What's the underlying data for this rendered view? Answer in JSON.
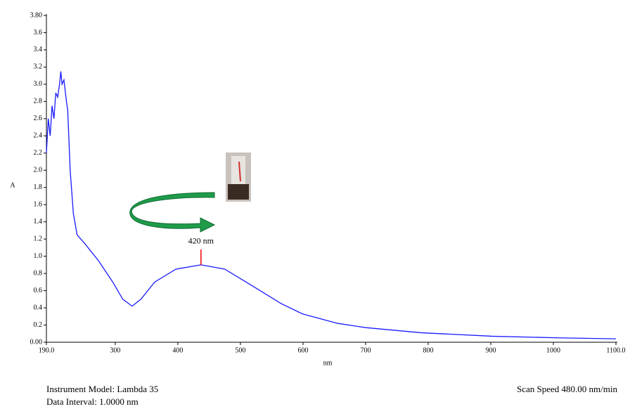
{
  "chart_data": {
    "type": "line",
    "xlabel": "nm",
    "ylabel": "A",
    "xlim": [
      190,
      1100
    ],
    "ylim": [
      0,
      3.8
    ],
    "xticks": [
      {
        "value": 190,
        "label": "190.0"
      },
      300,
      400,
      500,
      600,
      700,
      800,
      900,
      1000,
      {
        "value": 1100,
        "label": "1100.0"
      }
    ],
    "yticks": [
      {
        "value": 0,
        "label": "0.00"
      },
      0.2,
      0.4,
      0.6,
      0.8,
      {
        "value": 1,
        "label": "1.0"
      },
      1.2,
      1.4,
      1.6,
      1.8,
      {
        "value": 2,
        "label": "2.0"
      },
      2.2,
      2.4,
      2.6,
      2.8,
      {
        "value": 3,
        "label": "3.0"
      },
      3.2,
      3.4,
      3.6,
      {
        "value": 3.8,
        "label": "3.80"
      }
    ],
    "annotation": "420 nm",
    "series": [
      {
        "color": "#1a1aff",
        "x": [
          190,
          193,
          196,
          199,
          202,
          205,
          208,
          211,
          213,
          215,
          218,
          222,
          224,
          228,
          233,
          239,
          251,
          273,
          296,
          312,
          327,
          341,
          363,
          397,
          437,
          475,
          509,
          565,
          599,
          655,
          700,
          790,
          902,
          1015,
          1100
        ],
        "values": [
          2.2,
          2.6,
          2.4,
          2.75,
          2.6,
          2.9,
          2.85,
          3.0,
          3.15,
          3.0,
          3.05,
          2.8,
          2.7,
          2.0,
          1.5,
          1.25,
          1.15,
          0.95,
          0.7,
          0.5,
          0.42,
          0.5,
          0.7,
          0.85,
          0.9,
          0.85,
          0.7,
          0.45,
          0.33,
          0.22,
          0.17,
          0.11,
          0.07,
          0.05,
          0.04
        ]
      }
    ]
  },
  "footer": {
    "instrument_model": "Instrument Model: Lambda 35",
    "data_interval": "Data Interval: 1.0000 nm",
    "scan_speed": "Scan Speed 480.00 nm/min"
  }
}
